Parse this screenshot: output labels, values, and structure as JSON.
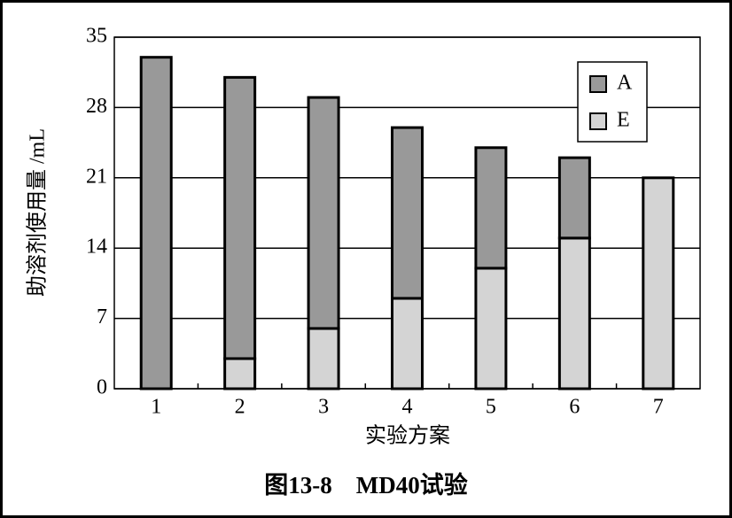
{
  "chart_data": {
    "type": "stacked_bar",
    "title": "图13-8    MD40试验",
    "x_label": "实验方案",
    "y_label": "助溶剂使用量 /mL",
    "categories": [
      "1",
      "2",
      "3",
      "4",
      "5",
      "6",
      "7"
    ],
    "series": [
      {
        "name": "A",
        "color": "#999999",
        "values": [
          33,
          28,
          23,
          17,
          12,
          8,
          0
        ]
      },
      {
        "name": "E",
        "color": "#d4d4d4",
        "values": [
          0,
          3,
          6,
          9,
          12,
          15,
          21
        ]
      }
    ],
    "ylim": [
      0,
      35
    ],
    "yticks": [
      0,
      7,
      14,
      21,
      28,
      35
    ],
    "grid": true,
    "legend": "upper right"
  }
}
